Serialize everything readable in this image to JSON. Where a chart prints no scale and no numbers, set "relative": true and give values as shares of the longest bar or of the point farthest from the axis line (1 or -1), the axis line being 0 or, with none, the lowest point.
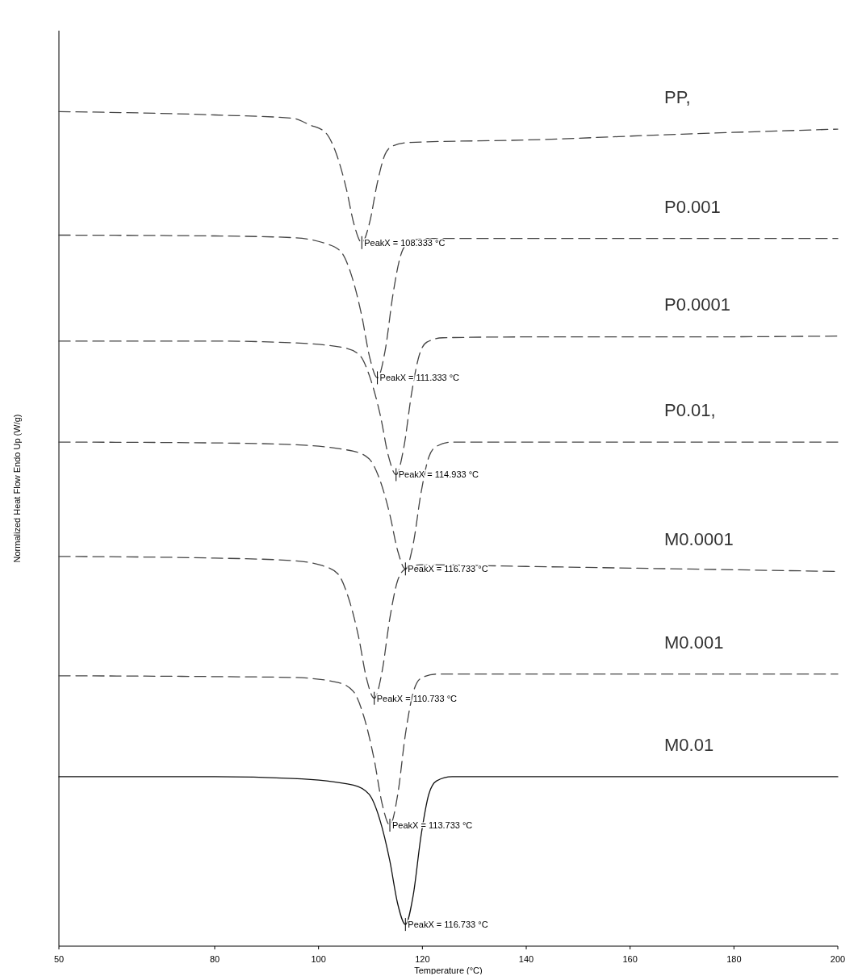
{
  "chart_data": {
    "type": "line",
    "relative": true,
    "xlabel": "Temperature (°C)",
    "ylabel": "Normalized Heat Flow Endo Up (W/g)",
    "xlim": [
      50,
      200
    ],
    "xticks": [
      50,
      80,
      100,
      120,
      140,
      160,
      180,
      200
    ],
    "grid": false,
    "marker": "none",
    "series": [
      {
        "name": "PP,",
        "color": "#444444",
        "line_style": "dashed",
        "x": [
          50,
          80,
          95,
          98.333,
          101.333,
          103.333,
          105.333,
          106.833,
          108.333,
          109.833,
          111.333,
          112.833,
          114.333,
          117.333,
          140,
          170,
          200
        ],
        "values": [
          1.0,
          0.996,
          0.992,
          0.984,
          0.975,
          0.951,
          0.908,
          0.865,
          0.843,
          0.867,
          0.915,
          0.949,
          0.959,
          0.963,
          0.966,
          0.973,
          0.979
        ]
      },
      {
        "name": "P0.001",
        "color": "#444444",
        "line_style": "dashed",
        "x": [
          50,
          80,
          95,
          101.333,
          104.333,
          106.333,
          108.333,
          109.833,
          111.333,
          112.833,
          114.333,
          115.833,
          117.333,
          120.333,
          140,
          170,
          200
        ],
        "values": [
          0.852,
          0.851,
          0.849,
          0.842,
          0.832,
          0.804,
          0.755,
          0.706,
          0.681,
          0.714,
          0.781,
          0.828,
          0.843,
          0.848,
          0.848,
          0.848,
          0.848
        ]
      },
      {
        "name": "P0.0001",
        "color": "#444444",
        "line_style": "dashed",
        "x": [
          50,
          80,
          95,
          104.933,
          107.933,
          109.933,
          111.933,
          113.433,
          114.933,
          116.433,
          117.933,
          119.433,
          120.933,
          123.933,
          140,
          170,
          200
        ],
        "values": [
          0.725,
          0.725,
          0.723,
          0.717,
          0.708,
          0.681,
          0.635,
          0.588,
          0.565,
          0.598,
          0.663,
          0.709,
          0.724,
          0.729,
          0.73,
          0.73,
          0.731
        ]
      },
      {
        "name": "P0.01,",
        "color": "#444444",
        "line_style": "dashed",
        "x": [
          50,
          80,
          95,
          106.733,
          109.733,
          111.733,
          113.733,
          115.233,
          116.733,
          118.233,
          119.733,
          121.233,
          122.733,
          125.733,
          140,
          170,
          200
        ],
        "values": [
          0.604,
          0.603,
          0.601,
          0.593,
          0.584,
          0.56,
          0.517,
          0.474,
          0.452,
          0.482,
          0.543,
          0.586,
          0.599,
          0.604,
          0.604,
          0.604,
          0.604
        ]
      },
      {
        "name": "M0.0001",
        "color": "#444444",
        "line_style": "dashed",
        "x": [
          50,
          80,
          95,
          100.733,
          103.733,
          105.733,
          107.733,
          109.233,
          110.733,
          112.233,
          113.733,
          115.233,
          116.733,
          119.733,
          140,
          170,
          200
        ],
        "values": [
          0.467,
          0.465,
          0.462,
          0.456,
          0.446,
          0.418,
          0.37,
          0.321,
          0.297,
          0.329,
          0.393,
          0.438,
          0.452,
          0.457,
          0.455,
          0.452,
          0.449
        ]
      },
      {
        "name": "M0.001",
        "color": "#444444",
        "line_style": "dashed",
        "x": [
          50,
          80,
          95,
          103.733,
          106.733,
          108.733,
          110.733,
          112.233,
          113.733,
          115.233,
          116.733,
          118.233,
          119.733,
          122.733,
          140,
          170,
          200
        ],
        "values": [
          0.324,
          0.323,
          0.322,
          0.316,
          0.305,
          0.275,
          0.223,
          0.171,
          0.145,
          0.181,
          0.254,
          0.304,
          0.321,
          0.326,
          0.326,
          0.326,
          0.326
        ]
      },
      {
        "name": "M0.01",
        "color": "#111111",
        "line_style": "solid",
        "x": [
          50,
          80,
          95,
          106.733,
          109.733,
          111.733,
          113.733,
          115.233,
          116.733,
          118.233,
          119.733,
          121.233,
          122.733,
          125.733,
          140,
          170,
          200
        ],
        "values": [
          0.203,
          0.203,
          0.201,
          0.193,
          0.182,
          0.153,
          0.102,
          0.051,
          0.026,
          0.061,
          0.132,
          0.182,
          0.198,
          0.203,
          0.203,
          0.203,
          0.203
        ]
      }
    ],
    "annotations": [
      {
        "text": "PeakX = 108.333 °C",
        "x": 108.333,
        "y": 0.843
      },
      {
        "text": "PeakX = 111.333 °C",
        "x": 111.333,
        "y": 0.681
      },
      {
        "text": "PeakX = 114.933 °C",
        "x": 114.933,
        "y": 0.565
      },
      {
        "text": "PeakX = 116.733 °C",
        "x": 116.733,
        "y": 0.452
      },
      {
        "text": "PeakX = 110.733 °C",
        "x": 110.733,
        "y": 0.297
      },
      {
        "text": "PeakX = 113.733 °C",
        "x": 113.733,
        "y": 0.145
      },
      {
        "text": "PeakX = 116.733 °C",
        "x": 116.733,
        "y": 0.026
      }
    ]
  }
}
